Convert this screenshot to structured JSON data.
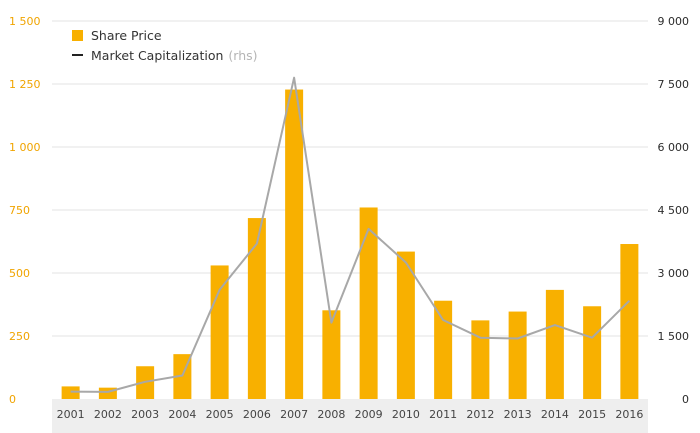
{
  "chart_data": {
    "type": "bar",
    "categories": [
      "2001",
      "2002",
      "2003",
      "2004",
      "2005",
      "2006",
      "2007",
      "2008",
      "2009",
      "2010",
      "2011",
      "2012",
      "2013",
      "2014",
      "2015",
      "2016"
    ],
    "series": [
      {
        "name": "Share Price",
        "type": "bar",
        "axis": "left",
        "color": "#f8b000",
        "values": [
          50,
          45,
          130,
          178,
          530,
          718,
          1228,
          352,
          760,
          585,
          390,
          312,
          347,
          433,
          368,
          615
        ]
      },
      {
        "name": "Market Capitalization",
        "type": "line",
        "axis": "right",
        "color": "#a8a8a8",
        "values": [
          175,
          170,
          410,
          560,
          2600,
          3700,
          7650,
          1820,
          4050,
          3250,
          1880,
          1460,
          1440,
          1760,
          1460,
          2340
        ]
      }
    ],
    "legend": [
      {
        "label": "Share Price",
        "suffix": ""
      },
      {
        "label": "Market Capitalization",
        "suffix": "(rhs)"
      }
    ],
    "y_left": {
      "ylim": [
        0,
        1500
      ],
      "ticks": [
        0,
        250,
        500,
        750,
        1000,
        1250,
        1500
      ],
      "tick_labels": [
        "0",
        "250",
        "500",
        "750",
        "1 000",
        "1 250",
        "1 500"
      ]
    },
    "y_right": {
      "ylim": [
        0,
        9000
      ],
      "ticks": [
        0,
        1500,
        3000,
        4500,
        6000,
        7500,
        9000
      ],
      "tick_labels": [
        "0",
        "1 500",
        "3 000",
        "4 500",
        "6 000",
        "7 500",
        "9 000"
      ]
    },
    "grid": true,
    "legend_position": "top-left",
    "colors": {
      "bar": "#f8b000",
      "line": "#a8a8a8",
      "left_axis_text": "#f0a400",
      "grid": "#e3e3e3",
      "x_band": "#eeeeee"
    }
  }
}
